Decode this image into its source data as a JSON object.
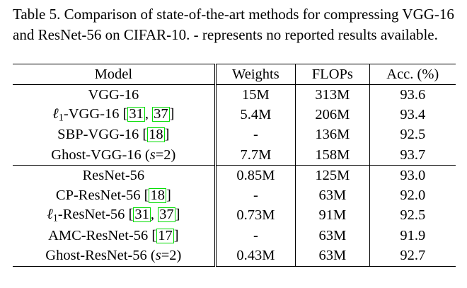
{
  "caption": "Table 5. Comparison of state-of-the-art methods for compressing VGG-16 and ResNet-56 on CIFAR-10. - represents no reported results available.",
  "headers": {
    "model": "Model",
    "weights": "Weights",
    "flops": "FLOPs",
    "acc": "Acc. (%)"
  },
  "rows": [
    {
      "model": "VGG-16",
      "weights": "15M",
      "flops": "313M",
      "acc": "93.6"
    },
    {
      "model_prefix": "ℓ",
      "model_sub": "1",
      "model": "-VGG-16 ",
      "refs": [
        "31",
        "37"
      ],
      "weights": "5.4M",
      "flops": "206M",
      "acc": "93.4"
    },
    {
      "model": "SBP-VGG-16 ",
      "refs": [
        "18"
      ],
      "weights": "-",
      "flops": "136M",
      "acc": "92.5"
    },
    {
      "model": "Ghost-VGG-16 (",
      "param": "s",
      "param_val": "=2)",
      "weights": "7.7M",
      "flops": "158M",
      "acc": "93.7",
      "acc_bold": true
    },
    {
      "model": "ResNet-56",
      "weights": "0.85M",
      "flops": "125M",
      "acc": "93.0"
    },
    {
      "model": "CP-ResNet-56 ",
      "refs": [
        "18"
      ],
      "weights": "-",
      "flops": "63M",
      "acc": "92.0"
    },
    {
      "model_prefix": "ℓ",
      "model_sub": "1",
      "model": "-ResNet-56 ",
      "refs": [
        "31",
        "37"
      ],
      "weights": "0.73M",
      "flops": "91M",
      "acc": "92.5"
    },
    {
      "model": "AMC-ResNet-56 ",
      "refs": [
        "17"
      ],
      "weights": "-",
      "flops": "63M",
      "acc": "91.9"
    },
    {
      "model": "Ghost-ResNet-56 (",
      "param": "s",
      "param_val": "=2)",
      "weights": "0.43M",
      "flops": "63M",
      "acc": "92.7",
      "acc_bold": true
    }
  ]
}
